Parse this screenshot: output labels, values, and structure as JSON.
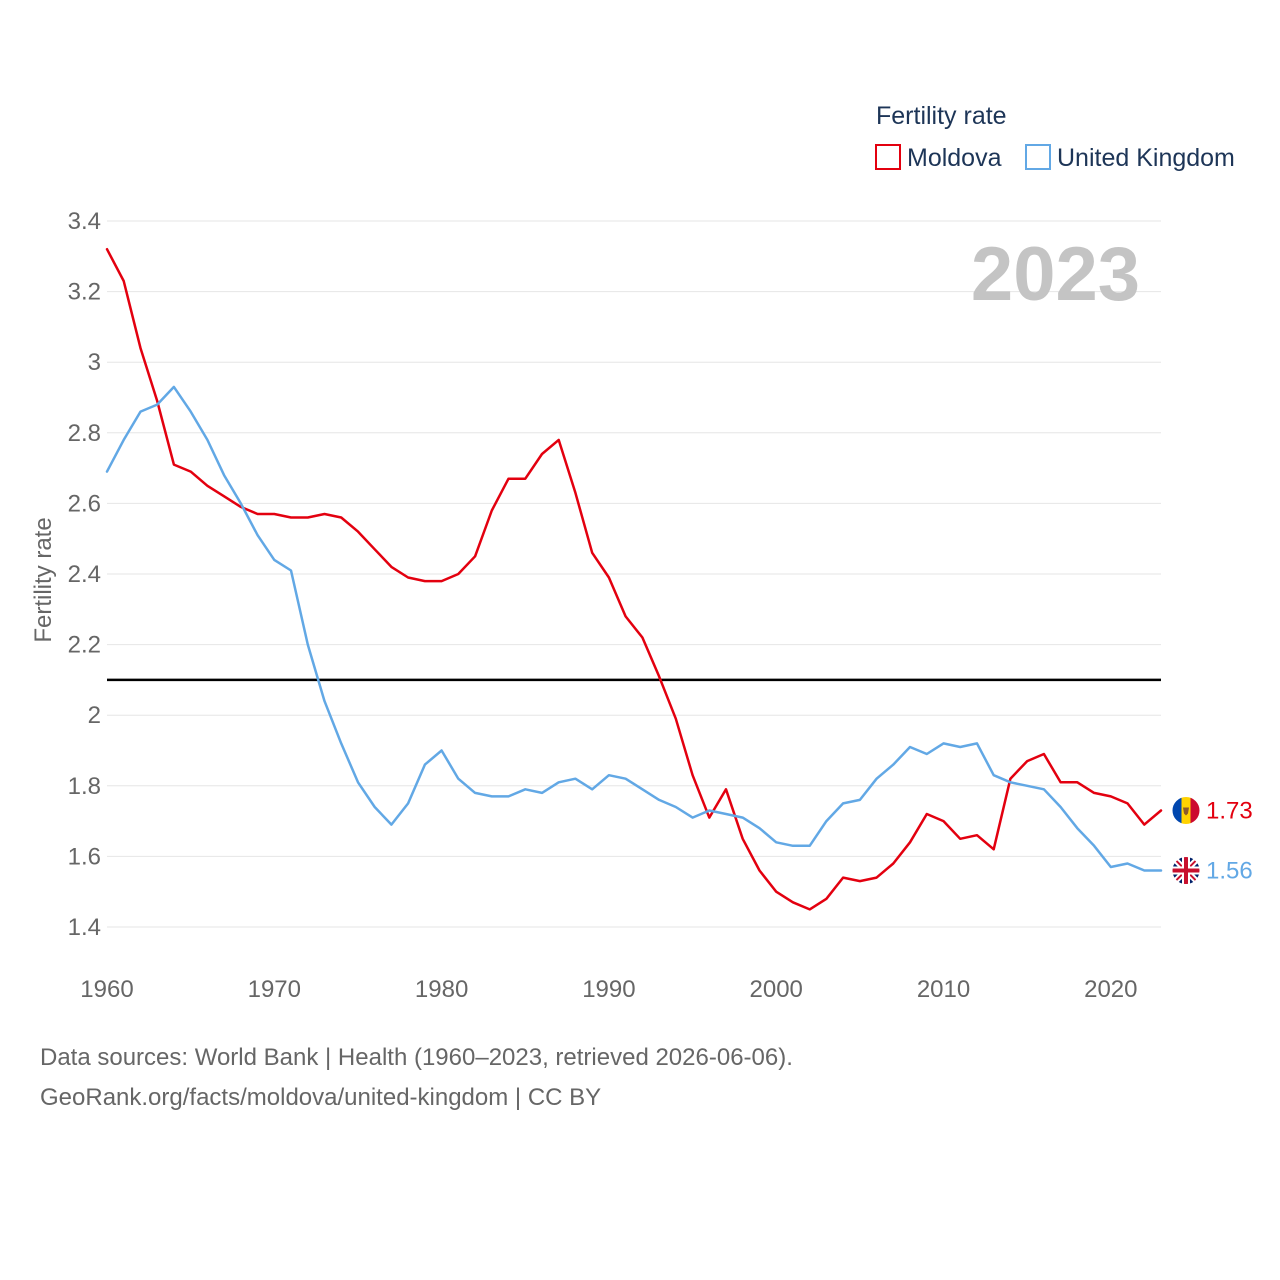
{
  "footer": {
    "line1": "Data sources: World Bank | Health (1960–2023, retrieved 2026-06-06).",
    "line2": "GeoRank.org/facts/moldova/united-kingdom | CC BY"
  },
  "chart_data": {
    "type": "line",
    "title": "Fertility rate",
    "ylabel": "Fertility rate",
    "xlabel": "",
    "current_year": "2023",
    "xlim": [
      1960,
      2023
    ],
    "ylim": [
      1.3,
      3.45
    ],
    "x_ticks": [
      1960,
      1970,
      1980,
      1990,
      2000,
      2010,
      2020
    ],
    "x_tick_labels": [
      "1960",
      "1970",
      "1980",
      "1990",
      "2000",
      "2010",
      "2020"
    ],
    "y_ticks": [
      1.4,
      1.6,
      1.8,
      2,
      2.2,
      2.4,
      2.6,
      2.8,
      3,
      3.2,
      3.4
    ],
    "y_tick_labels": [
      "1.4",
      "1.6",
      "1.8",
      "2",
      "2.2",
      "2.4",
      "2.6",
      "2.8",
      "3",
      "3.2",
      "3.4"
    ],
    "reference_line": 2.1,
    "legend": {
      "title": "Fertility rate",
      "position": "top-right"
    },
    "series": [
      {
        "name": "Moldova",
        "color": "#e3000f",
        "end_label": "1.73",
        "flag": "moldova-flag-icon",
        "x": [
          1960,
          1961,
          1962,
          1963,
          1964,
          1965,
          1966,
          1967,
          1968,
          1969,
          1970,
          1971,
          1972,
          1973,
          1974,
          1975,
          1976,
          1977,
          1978,
          1979,
          1980,
          1981,
          1982,
          1983,
          1984,
          1985,
          1986,
          1987,
          1988,
          1989,
          1990,
          1991,
          1992,
          1993,
          1994,
          1995,
          1996,
          1997,
          1998,
          1999,
          2000,
          2001,
          2002,
          2003,
          2004,
          2005,
          2006,
          2007,
          2008,
          2009,
          2010,
          2011,
          2012,
          2013,
          2014,
          2015,
          2016,
          2017,
          2018,
          2019,
          2020,
          2021,
          2022,
          2023
        ],
        "values": [
          3.32,
          3.23,
          3.04,
          2.89,
          2.71,
          2.69,
          2.65,
          2.62,
          2.59,
          2.57,
          2.57,
          2.56,
          2.56,
          2.57,
          2.56,
          2.52,
          2.47,
          2.42,
          2.39,
          2.38,
          2.38,
          2.4,
          2.45,
          2.58,
          2.67,
          2.67,
          2.74,
          2.78,
          2.63,
          2.46,
          2.39,
          2.28,
          2.22,
          2.11,
          1.99,
          1.83,
          1.71,
          1.79,
          1.65,
          1.56,
          1.5,
          1.47,
          1.45,
          1.48,
          1.54,
          1.53,
          1.54,
          1.58,
          1.64,
          1.72,
          1.7,
          1.65,
          1.66,
          1.62,
          1.82,
          1.87,
          1.89,
          1.81,
          1.81,
          1.78,
          1.77,
          1.75,
          1.69,
          1.73
        ]
      },
      {
        "name": "United Kingdom",
        "color": "#62a8e5",
        "end_label": "1.56",
        "flag": "uk-flag-icon",
        "x": [
          1960,
          1961,
          1962,
          1963,
          1964,
          1965,
          1966,
          1967,
          1968,
          1969,
          1970,
          1971,
          1972,
          1973,
          1974,
          1975,
          1976,
          1977,
          1978,
          1979,
          1980,
          1981,
          1982,
          1983,
          1984,
          1985,
          1986,
          1987,
          1988,
          1989,
          1990,
          1991,
          1992,
          1993,
          1994,
          1995,
          1996,
          1997,
          1998,
          1999,
          2000,
          2001,
          2002,
          2003,
          2004,
          2005,
          2006,
          2007,
          2008,
          2009,
          2010,
          2011,
          2012,
          2013,
          2014,
          2015,
          2016,
          2017,
          2018,
          2019,
          2020,
          2021,
          2022,
          2023
        ],
        "values": [
          2.69,
          2.78,
          2.86,
          2.88,
          2.93,
          2.86,
          2.78,
          2.68,
          2.6,
          2.51,
          2.44,
          2.41,
          2.2,
          2.04,
          1.92,
          1.81,
          1.74,
          1.69,
          1.75,
          1.86,
          1.9,
          1.82,
          1.78,
          1.77,
          1.77,
          1.79,
          1.78,
          1.81,
          1.82,
          1.79,
          1.83,
          1.82,
          1.79,
          1.76,
          1.74,
          1.71,
          1.73,
          1.72,
          1.71,
          1.68,
          1.64,
          1.63,
          1.63,
          1.7,
          1.75,
          1.76,
          1.82,
          1.86,
          1.91,
          1.89,
          1.92,
          1.91,
          1.92,
          1.83,
          1.81,
          1.8,
          1.79,
          1.74,
          1.68,
          1.63,
          1.57,
          1.58,
          1.56,
          1.56
        ]
      }
    ]
  }
}
